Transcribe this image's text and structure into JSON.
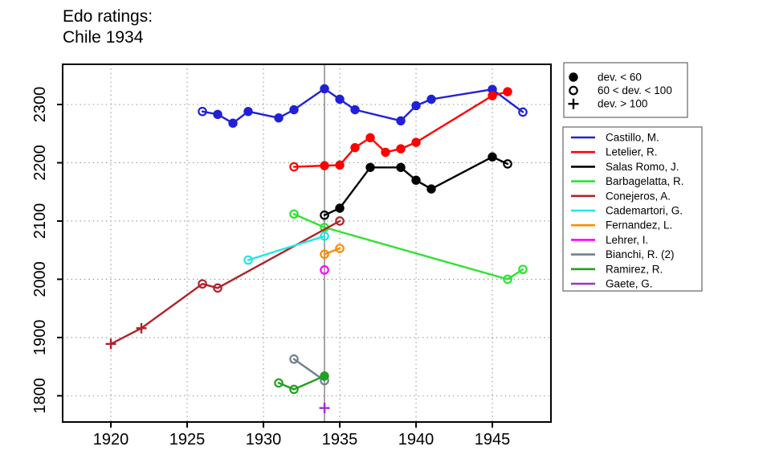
{
  "title": {
    "line1": "Edo ratings:",
    "line2": "Chile 1934"
  },
  "marker_legend": {
    "items": [
      {
        "symbol": "filled-circle",
        "label": "dev. < 60"
      },
      {
        "symbol": "open-circle",
        "label": "60 < dev. < 100"
      },
      {
        "symbol": "plus",
        "label": "dev. > 100"
      }
    ]
  },
  "chart_data": {
    "type": "line",
    "title": "Edo ratings: Chile 1934",
    "xlabel": "",
    "ylabel": "",
    "x_ticks": [
      1920,
      1925,
      1930,
      1935,
      1940,
      1945
    ],
    "y_ticks": [
      1800,
      1900,
      2000,
      2100,
      2200,
      2300
    ],
    "xlim": [
      1916.84,
      1948.84
    ],
    "ylim": [
      1755,
      2369
    ],
    "grid": "dotted",
    "legend_position": "right",
    "event_year_line": 1934,
    "colors": {
      "event_line": "#808080",
      "grid": "#808080",
      "axis": "#000000",
      "legend_border": "#666666"
    },
    "point_format": [
      "year",
      "rating",
      "marker"
    ],
    "series": [
      {
        "name": "Castillo, M.",
        "color": "#2020D8",
        "points": [
          [
            1926,
            2288,
            "open"
          ],
          [
            1927,
            2283,
            "filled"
          ],
          [
            1928,
            2268,
            "filled"
          ],
          [
            1929,
            2288,
            "filled"
          ],
          [
            1931,
            2277,
            "filled"
          ],
          [
            1932,
            2291,
            "filled"
          ],
          [
            1934,
            2327,
            "filled"
          ],
          [
            1935,
            2309,
            "filled"
          ],
          [
            1936,
            2291,
            "filled"
          ],
          [
            1939,
            2272,
            "filled"
          ],
          [
            1940,
            2298,
            "filled"
          ],
          [
            1941,
            2309,
            "filled"
          ],
          [
            1945,
            2326,
            "filled"
          ],
          [
            1947,
            2287,
            "open"
          ]
        ]
      },
      {
        "name": "Letelier, R.",
        "color": "#FF0000",
        "points": [
          [
            1932,
            2193,
            "open"
          ],
          [
            1934,
            2195,
            "filled"
          ],
          [
            1935,
            2196,
            "filled"
          ],
          [
            1936,
            2226,
            "filled"
          ],
          [
            1937,
            2243,
            "filled"
          ],
          [
            1938,
            2218,
            "filled"
          ],
          [
            1939,
            2224,
            "filled"
          ],
          [
            1940,
            2235,
            "filled"
          ],
          [
            1945,
            2315,
            "filled"
          ],
          [
            1946,
            2322,
            "filled"
          ]
        ]
      },
      {
        "name": "Salas Romo, J.",
        "color": "#000000",
        "points": [
          [
            1934,
            2110,
            "open"
          ],
          [
            1935,
            2122,
            "filled"
          ],
          [
            1937,
            2192,
            "filled"
          ],
          [
            1939,
            2192,
            "filled"
          ],
          [
            1940,
            2170,
            "filled"
          ],
          [
            1941,
            2155,
            "filled"
          ],
          [
            1945,
            2210,
            "filled"
          ],
          [
            1946,
            2198,
            "open"
          ]
        ]
      },
      {
        "name": "Barbagelatta, R.",
        "color": "#2FE22F",
        "points": [
          [
            1932,
            2112,
            "open"
          ],
          [
            1934,
            2089,
            "open"
          ],
          [
            1946,
            2000,
            "open"
          ],
          [
            1947,
            2017,
            "open"
          ]
        ]
      },
      {
        "name": "Conejeros, A.",
        "color": "#B02228",
        "points": [
          [
            1920,
            1889,
            "plus"
          ],
          [
            1922,
            1916,
            "plus"
          ],
          [
            1926,
            1992,
            "open"
          ],
          [
            1927,
            1985,
            "open"
          ],
          [
            1935,
            2100,
            "open"
          ]
        ]
      },
      {
        "name": "Cademartori, G.",
        "color": "#22E6E6",
        "points": [
          [
            1929,
            2033,
            "open"
          ],
          [
            1934,
            2074,
            "open"
          ]
        ]
      },
      {
        "name": "Fernandez, L.",
        "color": "#FF8C00",
        "points": [
          [
            1934,
            2043,
            "open"
          ],
          [
            1935,
            2053,
            "open"
          ]
        ]
      },
      {
        "name": "Lehrer, I.",
        "color": "#FF00FF",
        "points": [
          [
            1934,
            2016,
            "open"
          ]
        ]
      },
      {
        "name": "Bianchi, R. (2)",
        "color": "#708090",
        "points": [
          [
            1932,
            1863,
            "open"
          ],
          [
            1934,
            1826,
            "open"
          ]
        ]
      },
      {
        "name": "Ramirez, R.",
        "color": "#21A121",
        "points": [
          [
            1931,
            1822,
            "open"
          ],
          [
            1932,
            1811,
            "open"
          ],
          [
            1934,
            1834,
            "filled"
          ]
        ]
      },
      {
        "name": "Gaete, G.",
        "color": "#9932CC",
        "points": [
          [
            1934,
            1779,
            "plus"
          ]
        ]
      }
    ]
  }
}
